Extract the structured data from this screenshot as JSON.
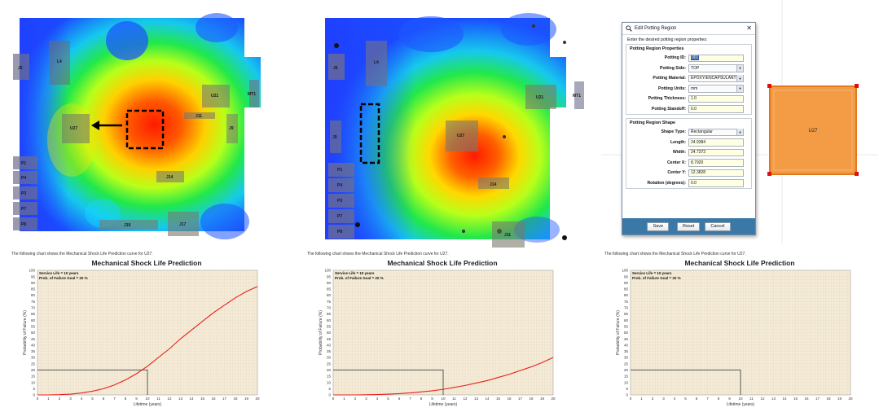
{
  "panels": [
    {
      "caption": "The following chart shows the Mechanical Shock Life Prediction curve for U27.",
      "board_labels": [
        "J5",
        "L4",
        "U27",
        "U21",
        "MT1",
        "J11",
        "J9",
        "J14",
        "J19",
        "J17",
        "P1",
        "P4",
        "P3",
        "P7",
        "P8"
      ]
    },
    {
      "caption": "The following chart shows the Mechanical Shock Life Prediction curve for U27.",
      "board_labels": [
        "J5",
        "L4",
        "U27",
        "U21",
        "MT1",
        "J9",
        "J14",
        "J11",
        "P1",
        "P4",
        "P3",
        "P7",
        "P8"
      ]
    },
    {
      "caption": "The following chart shows the Mechanical Shock Life Prediction curve for U27.",
      "board_labels": [
        "U27"
      ]
    }
  ],
  "dialog": {
    "title": "Edit Potting Region",
    "intro": "Enter the desired potting region properties:",
    "properties_group": "Potting Region Properties",
    "properties": [
      {
        "label": "Potting ID:",
        "value": "001",
        "kind": "input-selected"
      },
      {
        "label": "Potting Side:",
        "value": "TOP",
        "kind": "select"
      },
      {
        "label": "Potting Material:",
        "value": "EPOXY/ENCAPSULANT",
        "kind": "select"
      },
      {
        "label": "Potting Units:",
        "value": "mm",
        "kind": "select"
      },
      {
        "label": "Potting Thickness:",
        "value": "1.0",
        "kind": "input"
      },
      {
        "label": "Potting Standoff:",
        "value": "0.0",
        "kind": "input"
      }
    ],
    "shape_group": "Potting Region Shape",
    "shape": [
      {
        "label": "Shape Type:",
        "value": "Rectangular",
        "kind": "select"
      },
      {
        "label": "Length:",
        "value": "24.9384",
        "kind": "input"
      },
      {
        "label": "Width:",
        "value": "24.7373",
        "kind": "input"
      },
      {
        "label": "Center X:",
        "value": "8.7920",
        "kind": "input"
      },
      {
        "label": "Center Y:",
        "value": "12.3828",
        "kind": "input"
      },
      {
        "label": "Rotation (degrees):",
        "value": "0.0",
        "kind": "input"
      }
    ],
    "buttons": {
      "save": "Save",
      "reset": "Reset",
      "cancel": "Cancel"
    }
  },
  "potting_region_label": "U27",
  "chart_data": [
    {
      "type": "line",
      "title": "Mechanical Shock Life Prediction",
      "xlabel": "Lifetime (years)",
      "ylabel": "Probability of Failure (%)",
      "xlim": [
        0,
        20
      ],
      "ylim": [
        0,
        100
      ],
      "x_ticks": [
        0,
        1,
        2,
        3,
        4,
        5,
        6,
        7,
        8,
        9,
        10,
        11,
        12,
        13,
        14,
        15,
        16,
        17,
        18,
        19,
        20
      ],
      "y_ticks": [
        0,
        5,
        10,
        15,
        20,
        25,
        30,
        35,
        40,
        45,
        50,
        55,
        60,
        65,
        70,
        75,
        80,
        85,
        90,
        95,
        100
      ],
      "annotations": [
        "Service Life = 10 years",
        "Prob. of Failure Goal = 20 %"
      ],
      "goal_box": {
        "x": 10,
        "y": 20
      },
      "series": [
        {
          "x": [
            0,
            1,
            2,
            3,
            4,
            5,
            6,
            7,
            8,
            9,
            10,
            11,
            12,
            13,
            14,
            15,
            16,
            17,
            18,
            19,
            20
          ],
          "y": [
            0,
            0,
            0.2,
            0.6,
            1.5,
            3,
            5,
            8,
            12,
            17,
            23,
            30,
            37,
            45,
            52,
            59,
            66,
            72,
            78,
            83,
            87
          ]
        }
      ],
      "grid": true
    },
    {
      "type": "line",
      "title": "Mechanical Shock Life Prediction",
      "xlabel": "Lifetime (years)",
      "ylabel": "Probability of Failure (%)",
      "xlim": [
        0,
        20
      ],
      "ylim": [
        0,
        100
      ],
      "x_ticks": [
        0,
        1,
        2,
        3,
        4,
        5,
        6,
        7,
        8,
        9,
        10,
        11,
        12,
        13,
        14,
        15,
        16,
        17,
        18,
        19,
        20
      ],
      "y_ticks": [
        0,
        5,
        10,
        15,
        20,
        25,
        30,
        35,
        40,
        45,
        50,
        55,
        60,
        65,
        70,
        75,
        80,
        85,
        90,
        95,
        100
      ],
      "annotations": [
        "Service Life = 10 years",
        "Prob. of Failure Goal = 20 %"
      ],
      "goal_box": {
        "x": 10,
        "y": 20
      },
      "series": [
        {
          "x": [
            0,
            1,
            2,
            3,
            4,
            5,
            6,
            7,
            8,
            9,
            10,
            11,
            12,
            13,
            14,
            15,
            16,
            17,
            18,
            19,
            20
          ],
          "y": [
            0,
            0,
            0,
            0.1,
            0.3,
            0.6,
            1,
            1.6,
            2.4,
            3.3,
            4.5,
            6,
            7.6,
            9.5,
            11.5,
            14,
            16.5,
            19.5,
            22.5,
            26,
            30
          ]
        }
      ],
      "grid": true
    },
    {
      "type": "line",
      "title": "Mechanical Shock Life Prediction",
      "xlabel": "Lifetime (years)",
      "ylabel": "Probability of Failure (%)",
      "xlim": [
        0,
        20
      ],
      "ylim": [
        0,
        100
      ],
      "x_ticks": [
        0,
        1,
        2,
        3,
        4,
        5,
        6,
        7,
        8,
        9,
        10,
        11,
        12,
        13,
        14,
        15,
        16,
        17,
        18,
        19,
        20
      ],
      "y_ticks": [
        0,
        5,
        10,
        15,
        20,
        25,
        30,
        35,
        40,
        45,
        50,
        55,
        60,
        65,
        70,
        75,
        80,
        85,
        90,
        95,
        100
      ],
      "annotations": [
        "Service Life = 10 years",
        "Prob. of Failure Goal = 20 %"
      ],
      "goal_box": {
        "x": 10,
        "y": 20
      },
      "series": [],
      "grid": true
    }
  ],
  "colors": {
    "curve": "#e8201c",
    "plot_bg": "#f5ecd8",
    "grid": "#e5d9c2",
    "goal_line": "#555555",
    "potting_fill": "#f39b45",
    "potting_handle": "#e01010",
    "dialog_footer": "#3a78a8"
  }
}
